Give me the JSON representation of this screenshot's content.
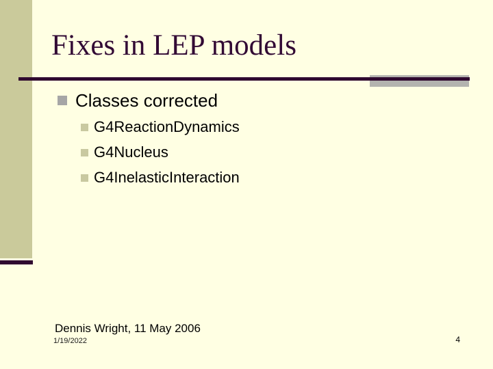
{
  "slide": {
    "title": "Fixes in LEP models",
    "bullets": {
      "level1": "Classes corrected",
      "level2": [
        "G4ReactionDynamics",
        "G4Nucleus",
        "G4InelasticInteraction"
      ]
    },
    "footer": {
      "attribution": "Dennis Wright, 11 May 2006",
      "date_stamp": "1/19/2022",
      "page_number": "4"
    }
  },
  "colors": {
    "background": "#FFFFE3",
    "sidebar_tan": "#CACA9B",
    "accent_dark_purple": "#300A30",
    "title_purple": "#320A34",
    "gray_band": "#B3B3AF",
    "bullet_level1_gray": "#A6A6A6",
    "bullet_level2_olive": "#C9C9A0"
  }
}
